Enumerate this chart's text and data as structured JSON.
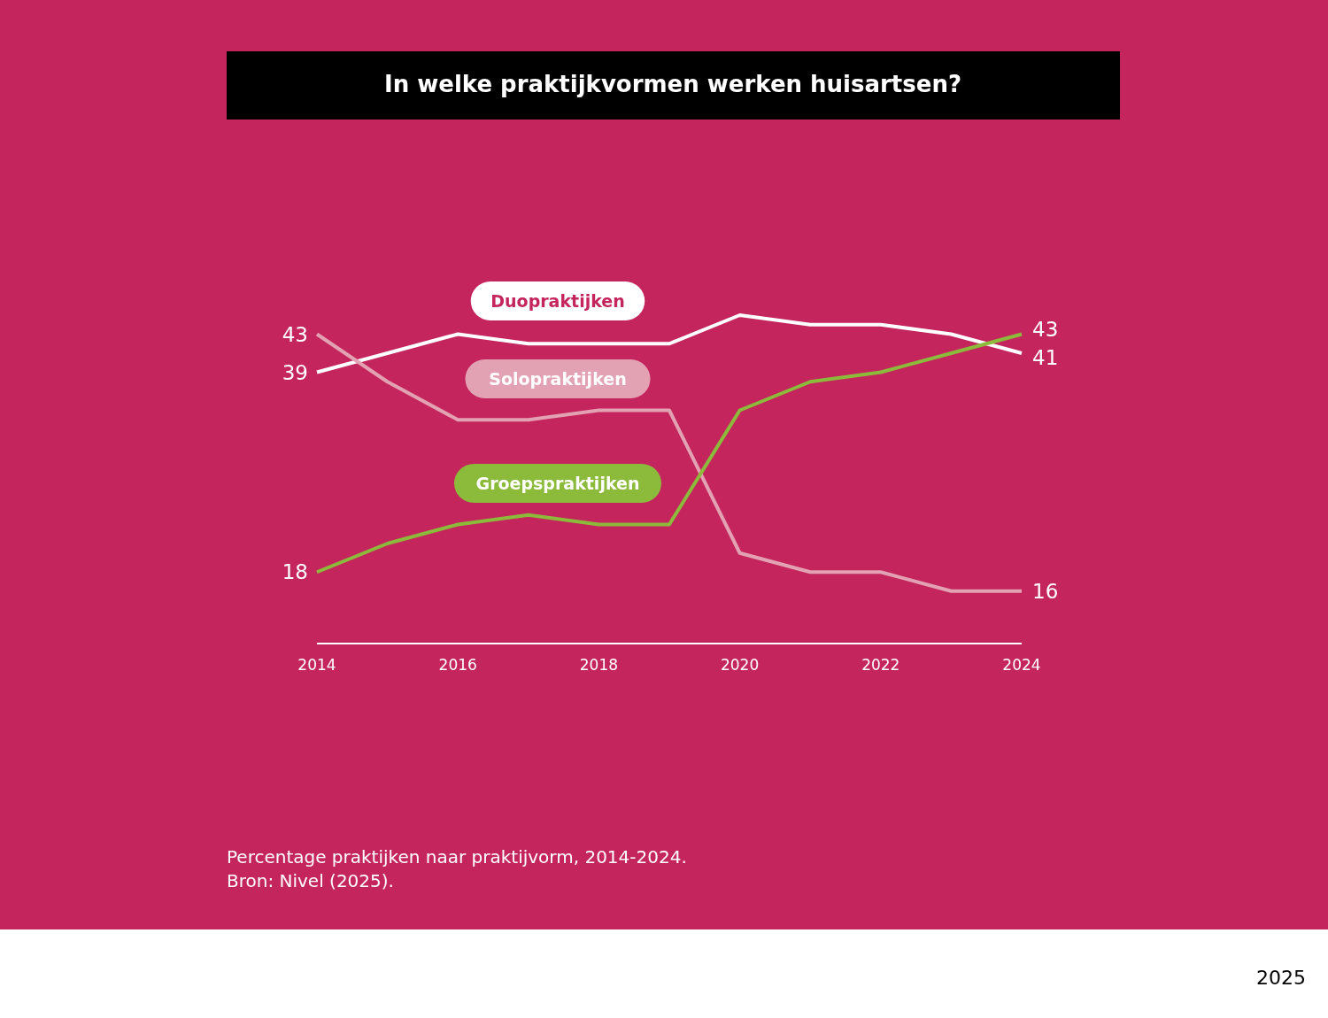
{
  "chart_data": {
    "type": "line",
    "title": "In welke praktijkvormen werken huisartsen?",
    "x": [
      2014,
      2015,
      2016,
      2017,
      2018,
      2019,
      2020,
      2021,
      2022,
      2023,
      2024
    ],
    "xlim": [
      2014,
      2024
    ],
    "xticks": [
      2014,
      2016,
      2018,
      2020,
      2022,
      2024
    ],
    "tick_labels": "x",
    "marker": "none",
    "line_style": "solid",
    "series": [
      {
        "name": "Duopraktijken",
        "color": "#ffffff",
        "values": [
          39,
          41,
          43,
          42,
          42,
          42,
          45,
          44,
          44,
          43,
          41
        ],
        "value_labels": [
          "39",
          null,
          null,
          null,
          null,
          null,
          null,
          null,
          null,
          null,
          "41"
        ]
      },
      {
        "name": "Solopraktijken",
        "color": "#e3a1b4",
        "values": [
          43,
          38,
          34,
          34,
          35,
          35,
          20,
          18,
          18,
          16,
          16
        ],
        "value_labels": [
          "43",
          null,
          null,
          null,
          null,
          null,
          null,
          null,
          null,
          null,
          "16"
        ]
      },
      {
        "name": "Groepspraktijken",
        "color": "#8cbb3c",
        "values": [
          18,
          21,
          23,
          24,
          23,
          23,
          35,
          38,
          39,
          41,
          43
        ],
        "value_labels": [
          "18",
          null,
          null,
          null,
          null,
          null,
          null,
          null,
          null,
          null,
          "43"
        ]
      }
    ],
    "annotations": [
      "Percentage praktijken naar praktijvorm, 2014-2024.",
      "Bron: Nivel (2025).",
      "2025"
    ]
  }
}
